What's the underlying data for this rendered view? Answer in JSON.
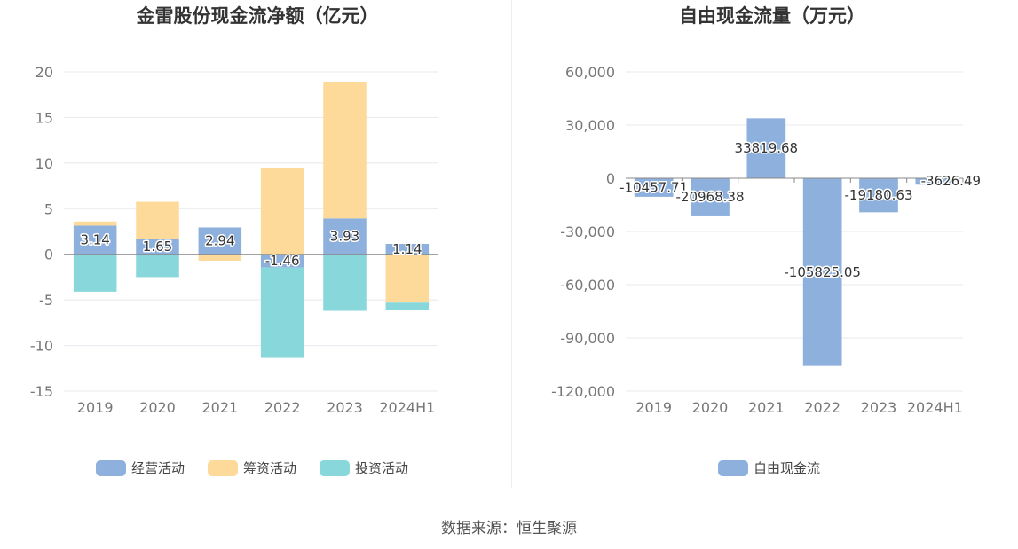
{
  "chart_data": [
    {
      "type": "bar",
      "stacked": true,
      "title": "金雷股份现金流净额（亿元）",
      "categories": [
        "2019",
        "2020",
        "2021",
        "2022",
        "2023",
        "2024H1"
      ],
      "ylim": [
        -15,
        20
      ],
      "yticks": [
        20,
        15,
        10,
        5,
        0,
        -5,
        -10,
        -15
      ],
      "grid": true,
      "legend_position": "bottom",
      "series": [
        {
          "name": "经营活动",
          "color": "#8eb0dd",
          "values": [
            3.14,
            1.65,
            2.94,
            -1.46,
            3.93,
            1.14
          ]
        },
        {
          "name": "筹资活动",
          "color": "#fdd99a",
          "values": [
            0.45,
            4.1,
            -0.7,
            9.5,
            15.0,
            -5.3
          ]
        },
        {
          "name": "投资活动",
          "color": "#88d7da",
          "values": [
            -4.1,
            -2.5,
            0.0,
            -9.9,
            -6.2,
            -0.8
          ]
        }
      ],
      "data_labels": [
        "3.14",
        "1.65",
        "2.94",
        "-1.46",
        "3.93",
        "1.14"
      ]
    },
    {
      "type": "bar",
      "title": "自由现金流量（万元）",
      "categories": [
        "2019",
        "2020",
        "2021",
        "2022",
        "2023",
        "2024H1"
      ],
      "ylim": [
        -120000,
        60000
      ],
      "yticks": [
        60000,
        30000,
        0,
        -30000,
        -60000,
        -90000,
        -120000
      ],
      "ytick_labels": [
        "60,000",
        "30,000",
        "0",
        "-30,000",
        "-60,000",
        "-90,000",
        "-120,000"
      ],
      "grid": true,
      "legend_position": "bottom",
      "series": [
        {
          "name": "自由现金流",
          "color": "#8eb0dd",
          "values": [
            -10457.71,
            -20968.38,
            33819.68,
            -105825.05,
            -19180.63,
            -3626.49
          ]
        }
      ],
      "data_labels": [
        "-10457.71",
        "-20968.38",
        "33819.68",
        "-105825.05",
        "-19180.63",
        "-3626.49"
      ]
    }
  ],
  "footer": {
    "source": "数据来源：恒生聚源"
  }
}
